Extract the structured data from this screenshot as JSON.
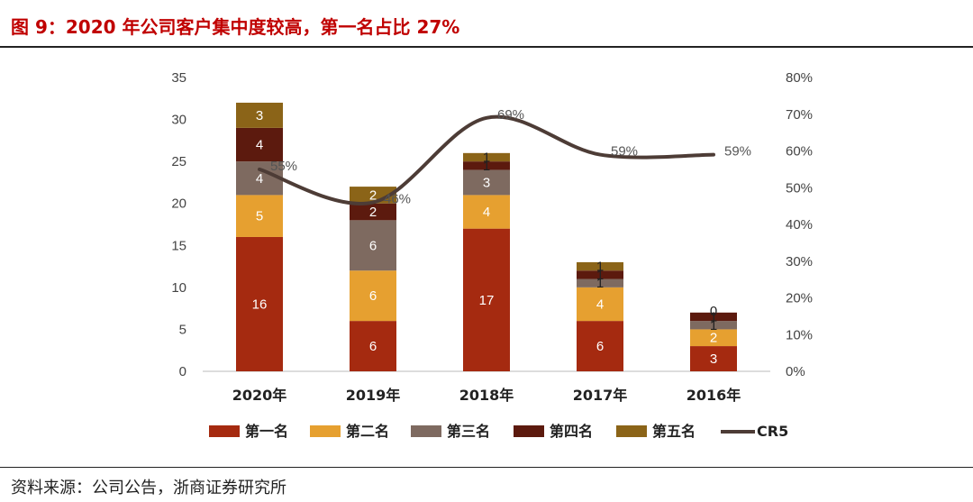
{
  "title": "图 9：2020 年公司客户集中度较高，第一名占比 27%",
  "source": "资料来源：公司公告，浙商证券研究所",
  "chart_data": {
    "type": "bar",
    "stacked": true,
    "categories": [
      "2020年",
      "2019年",
      "2018年",
      "2017年",
      "2016年"
    ],
    "series": [
      {
        "name": "第一名",
        "color": "#a52a10",
        "values": [
          16,
          6,
          17,
          6,
          3
        ],
        "labels": [
          "16",
          "6",
          "17",
          "6",
          "3"
        ]
      },
      {
        "name": "第二名",
        "color": "#e6a030",
        "values": [
          5,
          6,
          4,
          4,
          2
        ],
        "labels": [
          "5",
          "6",
          "4",
          "4",
          "2"
        ]
      },
      {
        "name": "第三名",
        "color": "#7e6a60",
        "values": [
          4,
          6,
          3,
          1,
          1
        ],
        "labels": [
          "4",
          "6",
          "3",
          "1",
          "1"
        ]
      },
      {
        "name": "第四名",
        "color": "#5c1a0e",
        "values": [
          4,
          2,
          1,
          1,
          1
        ],
        "labels": [
          "4",
          "2",
          "1",
          "1",
          "1"
        ]
      },
      {
        "name": "第五名",
        "color": "#8b6418",
        "values": [
          3,
          2,
          1,
          1,
          0
        ],
        "labels": [
          "3",
          "2",
          "1",
          "1",
          "0"
        ]
      }
    ],
    "line": {
      "name": "CR5",
      "color": "#4d3c36",
      "values": [
        0.55,
        0.46,
        0.69,
        0.59,
        0.59
      ],
      "labels": [
        "55%",
        "46%",
        "69%",
        "59%",
        "59%"
      ]
    },
    "y_left": {
      "min": 0,
      "max": 35,
      "ticks": [
        "0",
        "5",
        "10",
        "15",
        "20",
        "25",
        "30",
        "35"
      ]
    },
    "y_right": {
      "min": 0,
      "max": 0.8,
      "ticks": [
        "0%",
        "10%",
        "20%",
        "30%",
        "40%",
        "50%",
        "60%",
        "70%",
        "80%"
      ]
    },
    "legend_position": "bottom"
  }
}
